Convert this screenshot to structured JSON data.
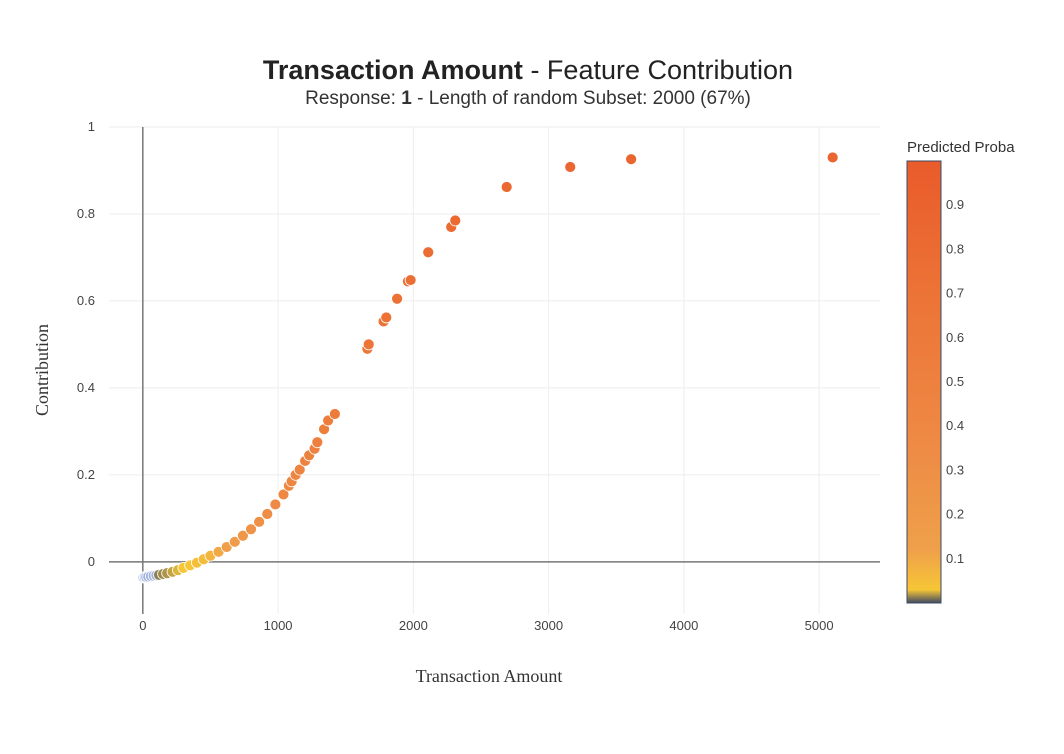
{
  "title": {
    "bold": "Transaction Amount",
    "rest": " - Feature Contribution"
  },
  "subtitle": {
    "prefix": "Response: ",
    "response": "1",
    "suffix": " - Length of random Subset: 2000 (67%)"
  },
  "colors": {
    "scale": [
      "#3f4a63",
      "#f6c636",
      "#efa04a",
      "#ee8b45",
      "#ec7336",
      "#e95b2b"
    ],
    "grid": "#eeeeee",
    "zeroline": "#777777",
    "marker_outline": "#ffffff"
  },
  "chart_data": {
    "type": "scatter",
    "title": "Transaction Amount - Feature Contribution",
    "subtitle": "Response: 1 - Length of random Subset: 2000 (67%)",
    "xlabel": "Transaction Amount",
    "ylabel": "Contribution",
    "xlim": [
      -250,
      5450
    ],
    "ylim": [
      -0.12,
      1.0
    ],
    "xticks": [
      0,
      1000,
      2000,
      3000,
      4000,
      5000
    ],
    "xtick_labels": [
      "0",
      "1000",
      "2000",
      "3000",
      "4000",
      "5000"
    ],
    "yticks": [
      0,
      0.2,
      0.4,
      0.6,
      0.8,
      1
    ],
    "ytick_labels": [
      "0",
      "0.2",
      "0.4",
      "0.6",
      "0.8",
      "1"
    ],
    "grid": true,
    "colorbar": {
      "title": "Predicted Proba",
      "range": [
        0.0,
        1.0
      ],
      "ticks": [
        0.1,
        0.2,
        0.3,
        0.4,
        0.5,
        0.6,
        0.7,
        0.8,
        0.9
      ],
      "tick_labels": [
        "0.1",
        "0.2",
        "0.3",
        "0.4",
        "0.5",
        "0.6",
        "0.7",
        "0.8",
        "0.9"
      ]
    },
    "points": [
      {
        "x": 5,
        "y": -0.036,
        "c": 0.005
      },
      {
        "x": 15,
        "y": -0.035,
        "c": 0.006
      },
      {
        "x": 25,
        "y": -0.035,
        "c": 0.007
      },
      {
        "x": 40,
        "y": -0.034,
        "c": 0.008
      },
      {
        "x": 60,
        "y": -0.033,
        "c": 0.009
      },
      {
        "x": 80,
        "y": -0.032,
        "c": 0.01
      },
      {
        "x": 100,
        "y": -0.031,
        "c": 0.011
      },
      {
        "x": 120,
        "y": -0.03,
        "c": 0.013
      },
      {
        "x": 150,
        "y": -0.028,
        "c": 0.015
      },
      {
        "x": 180,
        "y": -0.026,
        "c": 0.018
      },
      {
        "x": 220,
        "y": -0.023,
        "c": 0.022
      },
      {
        "x": 260,
        "y": -0.019,
        "c": 0.026
      },
      {
        "x": 300,
        "y": -0.014,
        "c": 0.03
      },
      {
        "x": 350,
        "y": -0.008,
        "c": 0.035
      },
      {
        "x": 400,
        "y": -0.002,
        "c": 0.045
      },
      {
        "x": 450,
        "y": 0.006,
        "c": 0.055
      },
      {
        "x": 500,
        "y": 0.014,
        "c": 0.07
      },
      {
        "x": 560,
        "y": 0.023,
        "c": 0.1
      },
      {
        "x": 620,
        "y": 0.034,
        "c": 0.14
      },
      {
        "x": 680,
        "y": 0.046,
        "c": 0.18
      },
      {
        "x": 740,
        "y": 0.06,
        "c": 0.22
      },
      {
        "x": 800,
        "y": 0.075,
        "c": 0.26
      },
      {
        "x": 860,
        "y": 0.092,
        "c": 0.3
      },
      {
        "x": 920,
        "y": 0.11,
        "c": 0.33
      },
      {
        "x": 980,
        "y": 0.132,
        "c": 0.36
      },
      {
        "x": 1040,
        "y": 0.155,
        "c": 0.39
      },
      {
        "x": 1080,
        "y": 0.175,
        "c": 0.41
      },
      {
        "x": 1100,
        "y": 0.185,
        "c": 0.42
      },
      {
        "x": 1130,
        "y": 0.2,
        "c": 0.43
      },
      {
        "x": 1160,
        "y": 0.212,
        "c": 0.45
      },
      {
        "x": 1200,
        "y": 0.232,
        "c": 0.47
      },
      {
        "x": 1230,
        "y": 0.245,
        "c": 0.48
      },
      {
        "x": 1270,
        "y": 0.26,
        "c": 0.5
      },
      {
        "x": 1290,
        "y": 0.275,
        "c": 0.51
      },
      {
        "x": 1340,
        "y": 0.305,
        "c": 0.53
      },
      {
        "x": 1370,
        "y": 0.325,
        "c": 0.55
      },
      {
        "x": 1420,
        "y": 0.34,
        "c": 0.57
      },
      {
        "x": 1660,
        "y": 0.49,
        "c": 0.66
      },
      {
        "x": 1670,
        "y": 0.5,
        "c": 0.67
      },
      {
        "x": 1780,
        "y": 0.553,
        "c": 0.7
      },
      {
        "x": 1800,
        "y": 0.562,
        "c": 0.71
      },
      {
        "x": 1880,
        "y": 0.605,
        "c": 0.73
      },
      {
        "x": 1960,
        "y": 0.645,
        "c": 0.75
      },
      {
        "x": 1980,
        "y": 0.648,
        "c": 0.755
      },
      {
        "x": 2110,
        "y": 0.712,
        "c": 0.78
      },
      {
        "x": 2280,
        "y": 0.77,
        "c": 0.8
      },
      {
        "x": 2310,
        "y": 0.785,
        "c": 0.81
      },
      {
        "x": 2690,
        "y": 0.862,
        "c": 0.84
      },
      {
        "x": 3160,
        "y": 0.908,
        "c": 0.85
      },
      {
        "x": 3610,
        "y": 0.926,
        "c": 0.86
      },
      {
        "x": 5100,
        "y": 0.93,
        "c": 0.87
      }
    ]
  }
}
